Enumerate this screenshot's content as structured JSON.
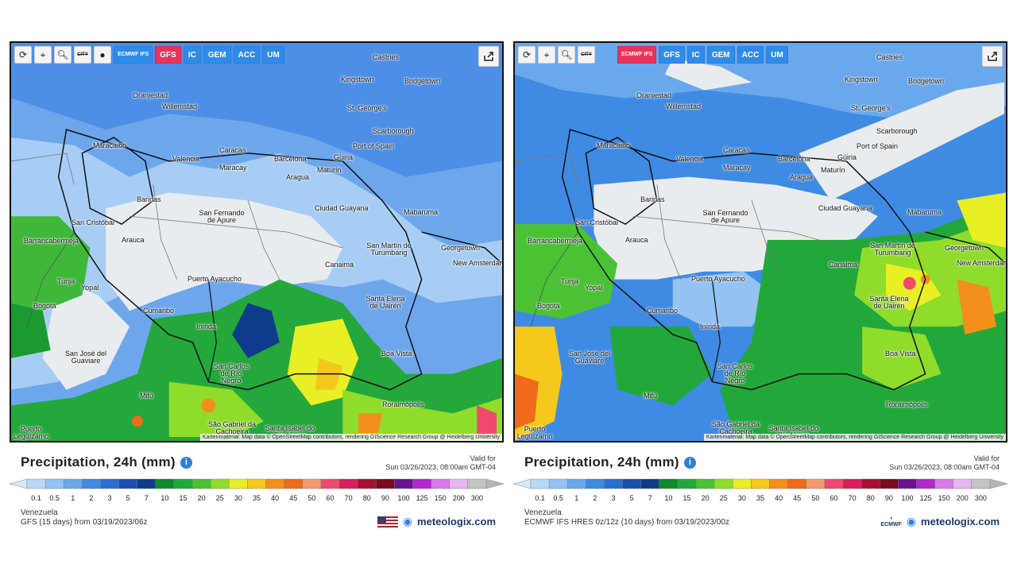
{
  "panels": [
    {
      "toolbar": {
        "tools": [
          "refresh-icon",
          "location-pin-icon",
          "zoom-icon",
          "city-toggle-icon",
          "dot-icon"
        ],
        "city_label": "CITY",
        "models": [
          {
            "label": "ECMWF IFS",
            "active": false
          },
          {
            "label": "GFS",
            "active": true
          },
          {
            "label": "IC",
            "active": false
          },
          {
            "label": "GEM",
            "active": false
          },
          {
            "label": "ACC",
            "active": false
          },
          {
            "label": "UM",
            "active": false
          }
        ]
      },
      "cities": [
        "Castries",
        "Kingstown",
        "Bridgetown",
        "Oranjestad",
        "Willemstad",
        "St. George's",
        "Scarborough",
        "Port of Spain",
        "Maracaibo",
        "Valencia",
        "Caracas",
        "Barcelona",
        "Maracay",
        "Güiria",
        "Maturín",
        "Aragua",
        "Barinas",
        "San Fernando de Apure",
        "Ciudad Guayana",
        "Mabaruma",
        "San Cristóbal",
        "Arauca",
        "Barrancabermeja",
        "San Martín de Turumbang",
        "Georgetown",
        "New Amsterdam",
        "Canaima",
        "Puerto Ayacucho",
        "Tunja",
        "Yopal",
        "Bogotá",
        "Santa Elena de Uairén",
        "Cumaribo",
        "Inírida",
        "Boa Vista",
        "San José del Guaviare",
        "San Carlos de Río Negro",
        "Mitú",
        "Roraimópolis",
        "São Gabriel da Cachoeira",
        "Santa Isabel do Rio Negro",
        "Puerto Leguízamo"
      ],
      "attribution": "Kartenmaterial: Map data © OpenStreetMap contributors, rendering GIScience Research Group @ Heidelberg University",
      "title": "Precipitation, 24h (mm)",
      "valid_label": "Valid for",
      "valid_time": "Sun 03/26/2023, 08:00am GMT-04",
      "region": "Venezuela",
      "run_info": "GFS (15 days) from 03/19/2023/06z",
      "brand": "meteologix.com"
    },
    {
      "toolbar": {
        "tools": [
          "refresh-icon",
          "location-pin-icon",
          "zoom-icon",
          "city-toggle-icon"
        ],
        "city_label": "CITY",
        "models": [
          {
            "label": "ECMWF IFS",
            "active": true
          },
          {
            "label": "GFS",
            "active": false
          },
          {
            "label": "IC",
            "active": false
          },
          {
            "label": "GEM",
            "active": false
          },
          {
            "label": "ACC",
            "active": false
          },
          {
            "label": "UM",
            "active": false
          }
        ]
      },
      "cities": [
        "Castries",
        "Kingstown",
        "Bridgetown",
        "Oranjestad",
        "Willemstad",
        "St. George's",
        "Scarborough",
        "Port of Spain",
        "Maracaibo",
        "Valencia",
        "Caracas",
        "Barcelona",
        "Maracay",
        "Güiria",
        "Maturín",
        "Aragua",
        "Barinas",
        "San Fernando de Apure",
        "Ciudad Guayana",
        "Mabaruma",
        "San Cristóbal",
        "Arauca",
        "Barrancabermeja",
        "San Martín de Turumbang",
        "Georgetown",
        "New Amsterdam",
        "Canaima",
        "Puerto Ayacucho",
        "Tunja",
        "Yopal",
        "Bogotá",
        "Santa Elena de Uairén",
        "Cumaribo",
        "Inírida",
        "Boa Vista",
        "San José del Guaviare",
        "San Carlos de Río Negro",
        "Mitú",
        "Roraimópolis",
        "São Gabriel da Cachoeira",
        "Santa Isabel do Rio Negro",
        "Puerto Leguízamo"
      ],
      "attribution": "Kartenmaterial: Map data © OpenStreetMap contributors, rendering GIScience Research Group @ Heidelberg University",
      "title": "Precipitation, 24h (mm)",
      "valid_label": "Valid for",
      "valid_time": "Sun 03/26/2023, 08:00am GMT-04",
      "region": "Venezuela",
      "run_info": "ECMWF IFS HRES 0z/12z (10 days) from 03/19/2023/00z",
      "brand": "meteologix.com"
    }
  ],
  "scale": {
    "values": [
      "0.1",
      "0.5",
      "1",
      "2",
      "3",
      "5",
      "7",
      "10",
      "15",
      "20",
      "25",
      "30",
      "35",
      "40",
      "45",
      "50",
      "60",
      "70",
      "80",
      "90",
      "100",
      "125",
      "150",
      "200",
      "300"
    ],
    "colors": [
      "#b9d8f8",
      "#93c2f3",
      "#6aa8ee",
      "#3f8ae3",
      "#2a6fd0",
      "#1a4fae",
      "#0e3b8b",
      "#0f8a2c",
      "#22a83a",
      "#4ac234",
      "#8fdc2a",
      "#e8ef25",
      "#f5c81c",
      "#f3901b",
      "#ef6a1a",
      "#f49a70",
      "#ef4a6d",
      "#d81e5b",
      "#a51034",
      "#7d0a1e",
      "#6a1390",
      "#b326d0",
      "#d87be8",
      "#e6b6ef",
      "#c4c4c4"
    ]
  }
}
